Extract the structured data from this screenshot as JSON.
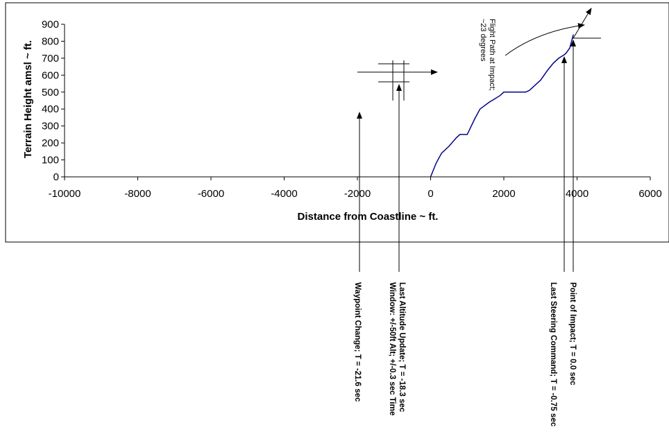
{
  "chart_data": {
    "type": "line",
    "title": "",
    "xlabel": "Distance from Coastline ~ ft.",
    "ylabel": "Terrain Height amsl ~ ft.",
    "xlim": [
      -10000,
      6000
    ],
    "ylim": [
      0,
      900
    ],
    "x_ticks": [
      "-10000",
      "-8000",
      "-6000",
      "-4000",
      "-2000",
      "0",
      "2000",
      "4000",
      "6000"
    ],
    "y_ticks": [
      "0",
      "100",
      "200",
      "300",
      "400",
      "500",
      "600",
      "700",
      "800",
      "900"
    ],
    "grid": false,
    "legend": "none",
    "series": [
      {
        "color": "#00008B",
        "x": [
          0,
          150,
          300,
          500,
          700,
          800,
          1000,
          1200,
          1350,
          1600,
          1750,
          1900,
          2000,
          2200,
          2400,
          2600,
          2700,
          2900,
          3000,
          3200,
          3350,
          3500,
          3650,
          3700,
          3800,
          3850,
          3900
        ],
        "y": [
          0,
          80,
          140,
          180,
          230,
          250,
          250,
          340,
          400,
          440,
          460,
          480,
          500,
          500,
          500,
          500,
          510,
          550,
          570,
          630,
          670,
          700,
          720,
          730,
          760,
          800,
          840
        ]
      }
    ],
    "annotations": [
      {
        "text": "Flight Path at Impact;",
        "text2": "~23 degrees"
      },
      {
        "text": "Waypoint Change; T = -21.6 sec",
        "x": -1950,
        "y": 380
      },
      {
        "text": "Last Altitude Update; T = -18.3 sec",
        "text2": "Window: +/-50ft Alt; +/-0.3 sec Time",
        "x": -800,
        "y": 560
      },
      {
        "text": "Last Steering Command; T = -0.75 sec",
        "x": 3700,
        "y": 720
      },
      {
        "text": "Point of Impact; T = 0.0 sec",
        "x": 3900,
        "y": 830
      }
    ]
  }
}
